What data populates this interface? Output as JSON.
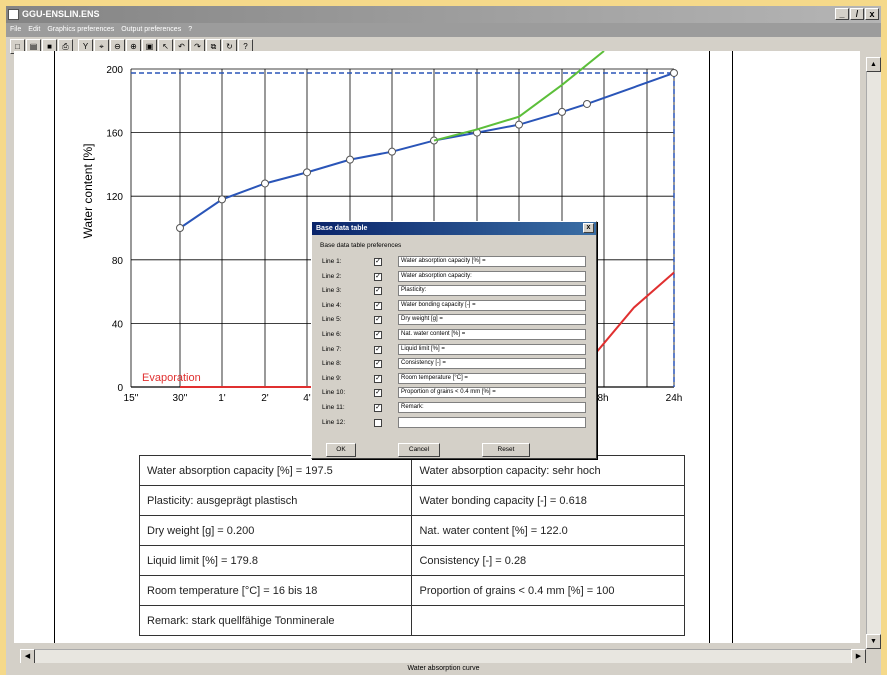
{
  "window": {
    "title": "GGU-ENSLIN.ENS",
    "controls": {
      "minimize": "_",
      "restore": "̸",
      "close": "x"
    }
  },
  "menu": [
    "File",
    "Edit",
    "Graphics preferences",
    "Output preferences",
    "?"
  ],
  "toolbar": [
    "new",
    "open",
    "save",
    "print",
    "info-Y",
    "zoom-area",
    "zoom-out",
    "zoom-in",
    "zoom-page",
    "select",
    "undo",
    "redo",
    "copy",
    "refresh",
    "help"
  ],
  "toolbar_glyphs": [
    "□",
    "▤",
    "■",
    "⎙",
    "Y",
    "⌖",
    "⊖",
    "⊕",
    "▣",
    "↖",
    "↶",
    "↷",
    "⧉",
    "↻",
    "?"
  ],
  "status": "Water absorption curve",
  "chart_data": {
    "type": "line",
    "ylabel": "Water content [%]",
    "yticks": [
      0,
      40,
      80,
      120,
      160,
      200
    ],
    "ylim": [
      0,
      200
    ],
    "xticks": [
      "15''",
      "30''",
      "1'",
      "2'",
      "4'",
      "8h",
      "24h"
    ],
    "annotation": "Evaporation",
    "reference_value": 197.5,
    "series": [
      {
        "color": "#2a55b8",
        "x": [
          "30''",
          "1'",
          "2'",
          "4'",
          "",
          "",
          "",
          "",
          "",
          "",
          "",
          "24h"
        ],
        "values": [
          100,
          118,
          128,
          135,
          143,
          148,
          155,
          160,
          165,
          173,
          178,
          197.5
        ],
        "markers": true
      },
      {
        "color": "#5cbf3a",
        "values": [
          155,
          162,
          170,
          190,
          215
        ]
      },
      {
        "color": "#e03030",
        "values": [
          0,
          0,
          20,
          50,
          72
        ]
      }
    ]
  },
  "base_table": [
    [
      "Water absorption capacity [%] =  197.5",
      "Water absorption capacity:  sehr hoch"
    ],
    [
      "Plasticity:  ausgeprägt plastisch",
      "Water bonding capacity [-] =  0.618"
    ],
    [
      "Dry weight [g] =  0.200",
      "Nat. water content [%] =  122.0"
    ],
    [
      "Liquid limit [%] =  179.8",
      "Consistency [-] =  0.28"
    ],
    [
      "Room temperature [°C] =  16 bis 18",
      "Proportion of grains < 0.4 mm [%] =  100"
    ],
    [
      "Remark:  stark quellfähige Tonminerale",
      ""
    ]
  ],
  "dialog": {
    "title": "Base data table",
    "close": "x",
    "subtitle": "Base data table preferences",
    "lines": [
      {
        "label": "Line 1:",
        "checked": true,
        "value": "Water absorption capacity [%] ="
      },
      {
        "label": "Line 2:",
        "checked": true,
        "value": "Water absorption capacity:"
      },
      {
        "label": "Line 3:",
        "checked": true,
        "value": "Plasticity:"
      },
      {
        "label": "Line 4:",
        "checked": true,
        "value": "Water bonding capacity [-] ="
      },
      {
        "label": "Line 5:",
        "checked": true,
        "value": "Dry weight [g] ="
      },
      {
        "label": "Line 6:",
        "checked": true,
        "value": "Nat. water content [%] ="
      },
      {
        "label": "Line 7:",
        "checked": true,
        "value": "Liquid limit [%] ="
      },
      {
        "label": "Line 8:",
        "checked": true,
        "value": "Consistency [-] ="
      },
      {
        "label": "Line 9:",
        "checked": true,
        "value": "Room temperature [°C] ="
      },
      {
        "label": "Line 10:",
        "checked": true,
        "value": "Proportion of grains < 0.4 mm [%] ="
      },
      {
        "label": "Line 11:",
        "checked": true,
        "value": "Remark:"
      },
      {
        "label": "Line 12:",
        "checked": false,
        "value": ""
      }
    ],
    "buttons": {
      "ok": "OK",
      "cancel": "Cancel",
      "reset": "Reset"
    }
  }
}
